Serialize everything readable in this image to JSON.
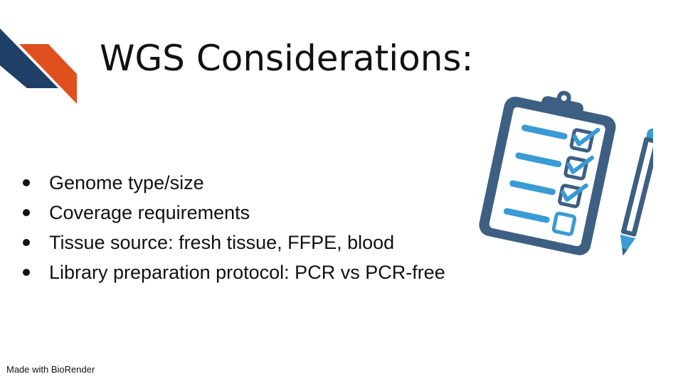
{
  "slide": {
    "title": "WGS Considerations:",
    "bullets": [
      "Genome type/size",
      "Coverage requirements",
      "Tissue source: fresh tissue, FFPE, blood",
      "Library preparation protocol: PCR vs PCR-free"
    ],
    "footer": "Made with BioRender",
    "decoration_colors": {
      "navy": "#1f3f66",
      "orange": "#e0501f"
    },
    "illustration": {
      "icons": [
        "clipboard-checklist-icon",
        "pencil-icon"
      ],
      "checklist_checked": 3,
      "checklist_total": 4,
      "colors": {
        "dark": "#3d5f82",
        "light": "#3a9bd5"
      }
    }
  }
}
